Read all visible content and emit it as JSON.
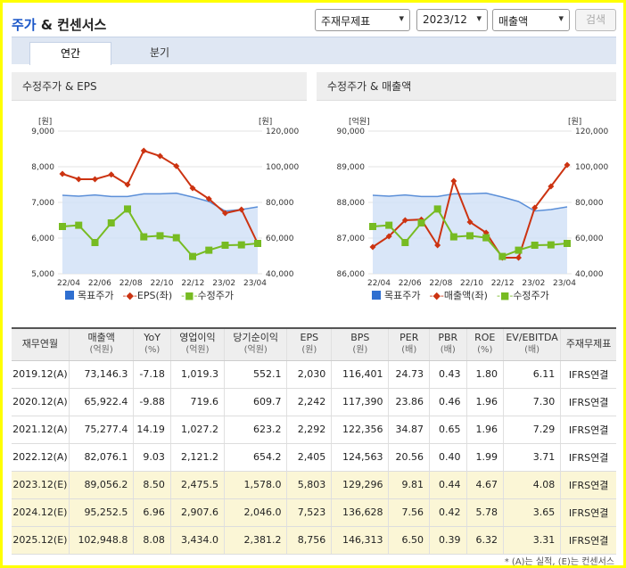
{
  "header": {
    "title_part1": "주가",
    "title_part2": " & 컨센서스",
    "select_type": "주재무제표",
    "select_period": "2023/12",
    "select_metric": "매출액",
    "search_label": "검색"
  },
  "tabs": [
    {
      "label": "연간",
      "active": true
    },
    {
      "label": "분기",
      "active": false
    }
  ],
  "left_chart": {
    "title": "수정주가 & EPS",
    "left_unit": "[원]",
    "right_unit": "[원]",
    "legend": [
      "목표주가",
      "EPS(좌)",
      "수정주가"
    ]
  },
  "right_chart": {
    "title": "수정주가 & 매출액",
    "left_unit": "[억원]",
    "right_unit": "[원]",
    "legend": [
      "목표주가",
      "매출액(좌)",
      "수정주가"
    ]
  },
  "colors": {
    "target": "#5b8fd8",
    "eps": "#cc3311",
    "price": "#77bb22",
    "accent": "#1a56c8"
  },
  "chart_data": [
    {
      "type": "line",
      "title": "수정주가 & EPS",
      "x_ticks": [
        "22/04",
        "22/06",
        "22/08",
        "22/10",
        "22/12",
        "23/02",
        "23/04"
      ],
      "y_left": {
        "unit": "[원]",
        "ylim": [
          5000,
          9000
        ],
        "ticks": [
          "9,000",
          "8,000",
          "7,000",
          "6,000",
          "5,000"
        ]
      },
      "y_right": {
        "unit": "[원]",
        "ylim": [
          40000,
          120000
        ],
        "ticks": [
          "120,000",
          "100,000",
          "80,000",
          "60,000",
          "40,000"
        ]
      },
      "series": [
        {
          "name": "목표주가",
          "axis": "right",
          "type": "area",
          "values": [
            84000,
            83500,
            84200,
            83300,
            83300,
            84800,
            84800,
            85200,
            83000,
            80500,
            75200,
            76000,
            77500
          ]
        },
        {
          "name": "EPS(좌)",
          "axis": "left",
          "values": [
            7800,
            7650,
            7650,
            7780,
            7500,
            8450,
            8300,
            8020,
            7400,
            7100,
            6700,
            6800,
            5850
          ]
        },
        {
          "name": "수정주가",
          "axis": "right",
          "values": [
            66500,
            67200,
            57500,
            68500,
            76300,
            60700,
            61300,
            60200,
            49700,
            53200,
            56000,
            56200,
            57000
          ]
        }
      ]
    },
    {
      "type": "line",
      "title": "수정주가 & 매출액",
      "x_ticks": [
        "22/04",
        "22/06",
        "22/08",
        "22/10",
        "22/12",
        "23/02",
        "23/04"
      ],
      "y_left": {
        "unit": "[억원]",
        "ylim": [
          86000,
          90000
        ],
        "ticks": [
          "90,000",
          "89,000",
          "88,000",
          "87,000",
          "86,000"
        ]
      },
      "y_right": {
        "unit": "[원]",
        "ylim": [
          40000,
          120000
        ],
        "ticks": [
          "120,000",
          "100,000",
          "80,000",
          "60,000",
          "40,000"
        ]
      },
      "series": [
        {
          "name": "목표주가",
          "axis": "right",
          "type": "area",
          "values": [
            84000,
            83500,
            84200,
            83300,
            83300,
            84800,
            84800,
            85200,
            83000,
            80500,
            75200,
            76000,
            77500
          ]
        },
        {
          "name": "매출액(좌)",
          "axis": "left",
          "values": [
            86750,
            87050,
            87500,
            87520,
            86800,
            88600,
            87450,
            87150,
            86450,
            86450,
            87850,
            88450,
            89050
          ]
        },
        {
          "name": "수정주가",
          "axis": "right",
          "values": [
            66500,
            67200,
            57500,
            68500,
            76300,
            60700,
            61300,
            60200,
            49700,
            53200,
            56000,
            56200,
            57000
          ]
        }
      ]
    }
  ],
  "table": {
    "columns": [
      {
        "label": "재무연월",
        "unit": ""
      },
      {
        "label": "매출액",
        "unit": "(억원)"
      },
      {
        "label": "YoY",
        "unit": "(%)"
      },
      {
        "label": "영업이익",
        "unit": "(억원)"
      },
      {
        "label": "당기순이익",
        "unit": "(억원)"
      },
      {
        "label": "EPS",
        "unit": "(원)"
      },
      {
        "label": "BPS",
        "unit": "(원)"
      },
      {
        "label": "PER",
        "unit": "(배)"
      },
      {
        "label": "PBR",
        "unit": "(배)"
      },
      {
        "label": "ROE",
        "unit": "(%)"
      },
      {
        "label": "EV/EBITDA",
        "unit": "(배)"
      },
      {
        "label": "주재무제표",
        "unit": ""
      }
    ],
    "rows": [
      [
        "2019.12(A)",
        "73,146.3",
        "-7.18",
        "1,019.3",
        "552.1",
        "2,030",
        "116,401",
        "24.73",
        "0.43",
        "1.80",
        "6.11",
        "IFRS연결"
      ],
      [
        "2020.12(A)",
        "65,922.4",
        "-9.88",
        "719.6",
        "609.7",
        "2,242",
        "117,390",
        "23.86",
        "0.46",
        "1.96",
        "7.30",
        "IFRS연결"
      ],
      [
        "2021.12(A)",
        "75,277.4",
        "14.19",
        "1,027.2",
        "623.2",
        "2,292",
        "122,356",
        "34.87",
        "0.65",
        "1.96",
        "7.29",
        "IFRS연결"
      ],
      [
        "2022.12(A)",
        "82,076.1",
        "9.03",
        "2,121.2",
        "654.2",
        "2,405",
        "124,563",
        "20.56",
        "0.40",
        "1.99",
        "3.71",
        "IFRS연결"
      ],
      [
        "2023.12(E)",
        "89,056.2",
        "8.50",
        "2,475.5",
        "1,578.0",
        "5,803",
        "129,296",
        "9.81",
        "0.44",
        "4.67",
        "4.08",
        "IFRS연결"
      ],
      [
        "2024.12(E)",
        "95,252.5",
        "6.96",
        "2,907.6",
        "2,046.0",
        "7,523",
        "136,628",
        "7.56",
        "0.42",
        "5.78",
        "3.65",
        "IFRS연결"
      ],
      [
        "2025.12(E)",
        "102,948.8",
        "8.08",
        "3,434.0",
        "2,381.2",
        "8,756",
        "146,313",
        "6.50",
        "0.39",
        "6.32",
        "3.31",
        "IFRS연결"
      ]
    ],
    "estimate_flags": [
      false,
      false,
      false,
      false,
      true,
      true,
      true
    ]
  },
  "footnote": "* (A)는 실적, (E)는 컨센서스"
}
